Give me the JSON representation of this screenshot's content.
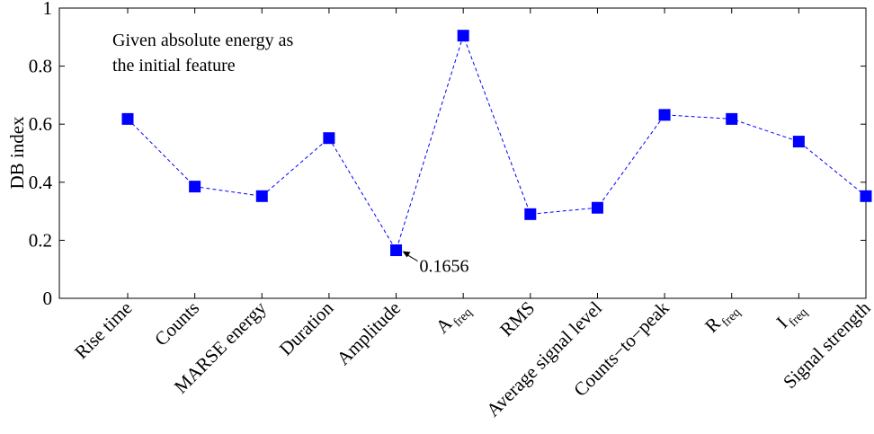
{
  "chart_data": {
    "type": "line",
    "title": "",
    "xlabel": "",
    "ylabel": "DB index",
    "ylim": [
      0,
      1
    ],
    "yticks": [
      "0",
      "0.2",
      "0.4",
      "0.6",
      "0.8",
      "1"
    ],
    "grid": false,
    "categories": [
      {
        "main": "Rise time",
        "sub": ""
      },
      {
        "main": "Counts",
        "sub": ""
      },
      {
        "main": "MARSE energy",
        "sub": ""
      },
      {
        "main": "Duration",
        "sub": ""
      },
      {
        "main": "Amplitude",
        "sub": ""
      },
      {
        "main": "A",
        "sub": "freq"
      },
      {
        "main": "RMS",
        "sub": ""
      },
      {
        "main": "Average signal level",
        "sub": ""
      },
      {
        "main": "Counts−to−peak",
        "sub": ""
      },
      {
        "main": "R",
        "sub": "freq"
      },
      {
        "main": "I",
        "sub": "freq"
      },
      {
        "main": "Signal strength",
        "sub": ""
      }
    ],
    "series": [
      {
        "values": [
          0.618,
          0.385,
          0.352,
          0.552,
          0.1656,
          0.905,
          0.29,
          0.312,
          0.632,
          0.618,
          0.54,
          0.352
        ],
        "color": "#0000ff",
        "line_style": "dashed",
        "marker": "square"
      }
    ],
    "annotations": [
      {
        "text": "Given absolute energy as",
        "position": "top-left"
      },
      {
        "text": "the initial feature",
        "position": "top-left"
      },
      {
        "text": "0.1656",
        "target_index": 4
      }
    ]
  }
}
